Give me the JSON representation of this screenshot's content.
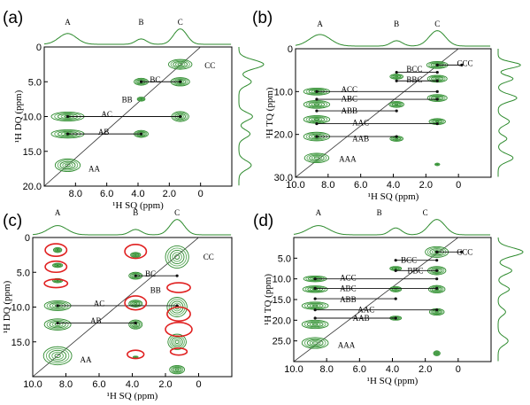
{
  "chart_data": [
    {
      "type": "contour",
      "panel_label": "(a)",
      "xlabel": "¹H SQ (ppm)",
      "ylabel": "¹H DQ (ppm)",
      "xlim": [
        10.0,
        -2.0
      ],
      "ylim": [
        0.0,
        20.0
      ],
      "xticks": [
        {
          "v": 8.0,
          "t": "8.0"
        },
        {
          "v": 6.0,
          "t": "6.0"
        },
        {
          "v": 4.0,
          "t": "4.0"
        },
        {
          "v": 2.0,
          "t": "2.0"
        },
        {
          "v": 0.0,
          "t": "0"
        }
      ],
      "yticks": [
        {
          "v": 0.0,
          "t": "0"
        },
        {
          "v": 5.0,
          "t": "5.0"
        },
        {
          "v": 10.0,
          "t": "10.0"
        },
        {
          "v": 15.0,
          "t": "15.0"
        },
        {
          "v": 20.0,
          "t": "20.0"
        }
      ],
      "projection_labels": [
        {
          "label": "A",
          "x": 8.5
        },
        {
          "label": "B",
          "x": 3.8
        },
        {
          "label": "C",
          "x": 1.3
        }
      ],
      "diagonal_slope": 2,
      "peaks": [
        {
          "x": 8.5,
          "y": 17.0,
          "w": 1.6,
          "h": 1.8
        },
        {
          "x": 8.5,
          "y": 10.0,
          "w": 2.1,
          "h": 1.3
        },
        {
          "x": 8.5,
          "y": 12.5,
          "w": 2.1,
          "h": 1.2
        },
        {
          "x": 3.8,
          "y": 12.5,
          "w": 0.9,
          "h": 1.0
        },
        {
          "x": 3.8,
          "y": 5.0,
          "w": 0.9,
          "h": 1.0
        },
        {
          "x": 3.8,
          "y": 7.5,
          "w": 0.5,
          "h": 0.6
        },
        {
          "x": 1.3,
          "y": 10.0,
          "w": 1.1,
          "h": 1.4
        },
        {
          "x": 1.3,
          "y": 5.0,
          "w": 1.2,
          "h": 1.2
        },
        {
          "x": 1.3,
          "y": 2.5,
          "w": 1.5,
          "h": 1.4
        }
      ],
      "connectors": [
        {
          "x1": 8.5,
          "x2": 1.3,
          "y": 10.0
        },
        {
          "x1": 8.5,
          "x2": 3.8,
          "y": 12.5
        },
        {
          "x1": 3.8,
          "x2": 1.3,
          "y": 5.0
        }
      ],
      "annotations": [
        {
          "text": "AA",
          "x": 6.8,
          "y": 17.5
        },
        {
          "text": "AB",
          "x": 6.2,
          "y": 12.2
        },
        {
          "text": "AC",
          "x": 6.0,
          "y": 9.7
        },
        {
          "text": "BB",
          "x": 4.7,
          "y": 7.6
        },
        {
          "text": "BC",
          "x": 2.9,
          "y": 4.7
        },
        {
          "text": "CC",
          "x": -0.6,
          "y": 2.7
        }
      ],
      "top_projection": [
        {
          "x": 8.5,
          "a": 0.7,
          "w": 0.8
        },
        {
          "x": 3.8,
          "a": 0.35,
          "w": 0.5
        },
        {
          "x": 1.3,
          "a": 1.0,
          "w": 0.6
        }
      ],
      "right_projection": [
        {
          "y": 2.5,
          "a": 1.0,
          "w": 0.9
        },
        {
          "y": 5.0,
          "a": 0.5,
          "w": 0.8
        },
        {
          "y": 10.0,
          "a": 0.55,
          "w": 0.8
        },
        {
          "y": 12.5,
          "a": 0.45,
          "w": 0.8
        },
        {
          "y": 17.0,
          "a": 0.5,
          "w": 0.9
        }
      ]
    },
    {
      "type": "contour",
      "panel_label": "(b)",
      "xlabel": "¹H SQ (ppm)",
      "ylabel": "¹H TQ (ppm)",
      "xlim": [
        10.0,
        -2.0
      ],
      "ylim": [
        0.0,
        30.0
      ],
      "xticks": [
        {
          "v": 10.0,
          "t": "10.0"
        },
        {
          "v": 8.0,
          "t": "8.0"
        },
        {
          "v": 6.0,
          "t": "6.0"
        },
        {
          "v": 4.0,
          "t": "4.0"
        },
        {
          "v": 2.0,
          "t": "2.0"
        },
        {
          "v": 0.0,
          "t": "0"
        }
      ],
      "yticks": [
        {
          "v": 0.0,
          "t": "0"
        },
        {
          "v": 10.0,
          "t": "10.0"
        },
        {
          "v": 20.0,
          "t": "20.0"
        },
        {
          "v": 30.0,
          "t": "30.0"
        }
      ],
      "projection_labels": [
        {
          "label": "A",
          "x": 8.5
        },
        {
          "label": "B",
          "x": 3.8
        },
        {
          "label": "C",
          "x": 1.3
        }
      ],
      "diagonal_slope": 3,
      "peaks": [
        {
          "x": 8.7,
          "y": 25.5,
          "w": 1.5,
          "h": 2.2
        },
        {
          "x": 8.7,
          "y": 20.5,
          "w": 1.6,
          "h": 2.0
        },
        {
          "x": 8.7,
          "y": 16.5,
          "w": 1.6,
          "h": 1.8
        },
        {
          "x": 8.7,
          "y": 13.0,
          "w": 1.6,
          "h": 1.8
        },
        {
          "x": 8.7,
          "y": 10.0,
          "w": 1.6,
          "h": 1.6
        },
        {
          "x": 3.8,
          "y": 21.0,
          "w": 0.8,
          "h": 1.2
        },
        {
          "x": 3.8,
          "y": 13.0,
          "w": 0.9,
          "h": 1.4
        },
        {
          "x": 3.8,
          "y": 6.5,
          "w": 0.8,
          "h": 1.2
        },
        {
          "x": 1.3,
          "y": 17.0,
          "w": 1.0,
          "h": 1.4
        },
        {
          "x": 1.3,
          "y": 11.5,
          "w": 1.2,
          "h": 1.6
        },
        {
          "x": 1.3,
          "y": 7.0,
          "w": 1.2,
          "h": 1.6
        },
        {
          "x": 1.3,
          "y": 3.8,
          "w": 1.3,
          "h": 1.6
        },
        {
          "x": 1.3,
          "y": 27.0,
          "w": 0.3,
          "h": 0.6
        }
      ],
      "connectors": [
        {
          "x1": 8.7,
          "x2": 1.3,
          "y": 10.0
        },
        {
          "x1": 8.7,
          "x2": 1.3,
          "y": 11.8
        },
        {
          "x1": 8.7,
          "x2": 3.8,
          "y": 14.5
        },
        {
          "x1": 8.7,
          "x2": 1.3,
          "y": 17.5
        },
        {
          "x1": 8.7,
          "x2": 3.8,
          "y": 20.5
        },
        {
          "x1": 3.8,
          "x2": 1.3,
          "y": 5.5
        },
        {
          "x1": 3.8,
          "x2": 1.3,
          "y": 7.5
        },
        {
          "x1": 1.3,
          "x2": -0.2,
          "y": 3.8
        }
      ],
      "annotations": [
        {
          "text": "AAA",
          "x": 6.8,
          "y": 25.8
        },
        {
          "text": "AAB",
          "x": 6.0,
          "y": 21.0
        },
        {
          "text": "AAC",
          "x": 6.0,
          "y": 17.3
        },
        {
          "text": "ABB",
          "x": 6.7,
          "y": 14.5
        },
        {
          "text": "ABC",
          "x": 6.7,
          "y": 11.7
        },
        {
          "text": "ACC",
          "x": 6.7,
          "y": 9.5
        },
        {
          "text": "BBC",
          "x": 2.7,
          "y": 7.2
        },
        {
          "text": "BCC",
          "x": 2.7,
          "y": 4.8
        },
        {
          "text": "CCC",
          "x": -0.4,
          "y": 3.4
        }
      ],
      "top_projection": [
        {
          "x": 8.5,
          "a": 0.75,
          "w": 0.9
        },
        {
          "x": 3.8,
          "a": 0.35,
          "w": 0.5
        },
        {
          "x": 1.3,
          "a": 1.0,
          "w": 0.7
        }
      ],
      "right_projection": [
        {
          "y": 3.8,
          "a": 0.9,
          "w": 1.0
        },
        {
          "y": 7.0,
          "a": 0.6,
          "w": 1.0
        },
        {
          "y": 11.5,
          "a": 0.75,
          "w": 1.2
        },
        {
          "y": 17.0,
          "a": 0.45,
          "w": 1.2
        },
        {
          "y": 21.0,
          "a": 0.35,
          "w": 1.0
        },
        {
          "y": 25.5,
          "a": 0.6,
          "w": 1.3
        }
      ]
    },
    {
      "type": "contour",
      "panel_label": "(c)",
      "xlabel": "¹H SQ (ppm)",
      "ylabel": "¹H DQ (ppm)",
      "xlim": [
        10.0,
        -2.0
      ],
      "ylim": [
        0.0,
        20.0
      ],
      "xticks": [
        {
          "v": 10.0,
          "t": "10.0"
        },
        {
          "v": 8.0,
          "t": "8.0"
        },
        {
          "v": 6.0,
          "t": "6.0"
        },
        {
          "v": 4.0,
          "t": "4.0"
        },
        {
          "v": 2.0,
          "t": "2.0"
        },
        {
          "v": 0.0,
          "t": "0"
        }
      ],
      "yticks": [
        {
          "v": 0.0,
          "t": "0"
        },
        {
          "v": 5.0,
          "t": "5.0"
        },
        {
          "v": 10.0,
          "t": "10.0"
        },
        {
          "v": 15.0,
          "t": "15.0"
        }
      ],
      "projection_labels": [
        {
          "label": "A",
          "x": 8.5
        },
        {
          "label": "B",
          "x": 3.8
        },
        {
          "label": "C",
          "x": 1.3
        }
      ],
      "diagonal_slope": 2,
      "peaks": [
        {
          "x": 8.5,
          "y": 17.0,
          "w": 1.7,
          "h": 2.6
        },
        {
          "x": 8.5,
          "y": 12.5,
          "w": 1.6,
          "h": 1.6
        },
        {
          "x": 8.5,
          "y": 9.8,
          "w": 1.6,
          "h": 1.4
        },
        {
          "x": 8.5,
          "y": 6.2,
          "w": 0.6,
          "h": 0.6
        },
        {
          "x": 8.5,
          "y": 4.0,
          "w": 0.6,
          "h": 0.6
        },
        {
          "x": 8.5,
          "y": 1.8,
          "w": 0.5,
          "h": 0.7
        },
        {
          "x": 3.8,
          "y": 12.5,
          "w": 0.8,
          "h": 1.3
        },
        {
          "x": 3.8,
          "y": 9.5,
          "w": 0.8,
          "h": 1.0
        },
        {
          "x": 3.8,
          "y": 5.5,
          "w": 0.8,
          "h": 1.0
        },
        {
          "x": 3.8,
          "y": 2.5,
          "w": 0.6,
          "h": 0.7
        },
        {
          "x": 3.8,
          "y": 17.2,
          "w": 0.3,
          "h": 0.3
        },
        {
          "x": 1.3,
          "y": 2.8,
          "w": 1.4,
          "h": 3.2
        },
        {
          "x": 1.3,
          "y": 10.0,
          "w": 1.2,
          "h": 2.8
        },
        {
          "x": 1.3,
          "y": 15.0,
          "w": 1.1,
          "h": 2.2
        },
        {
          "x": 1.3,
          "y": 19.0,
          "w": 0.9,
          "h": 1.2
        }
      ],
      "circles": [
        {
          "x": 8.6,
          "y": 1.8,
          "rx": 0.65,
          "ry": 0.9
        },
        {
          "x": 8.6,
          "y": 4.2,
          "rx": 0.65,
          "ry": 0.8
        },
        {
          "x": 8.6,
          "y": 6.6,
          "rx": 0.7,
          "ry": 0.6
        },
        {
          "x": 3.8,
          "y": 2.0,
          "rx": 0.65,
          "ry": 1.0
        },
        {
          "x": 3.8,
          "y": 9.4,
          "rx": 0.65,
          "ry": 1.0
        },
        {
          "x": 3.8,
          "y": 16.8,
          "rx": 0.5,
          "ry": 0.6
        },
        {
          "x": 1.2,
          "y": 7.2,
          "rx": 0.7,
          "ry": 0.7
        },
        {
          "x": 1.2,
          "y": 11.0,
          "rx": 0.7,
          "ry": 1.0
        },
        {
          "x": 1.2,
          "y": 13.2,
          "rx": 0.8,
          "ry": 1.0
        },
        {
          "x": 1.2,
          "y": 16.4,
          "rx": 0.5,
          "ry": 0.5
        }
      ],
      "connectors": [
        {
          "x1": 8.5,
          "x2": 1.3,
          "y": 9.8
        },
        {
          "x1": 8.5,
          "x2": 3.8,
          "y": 12.3
        },
        {
          "x1": 3.8,
          "x2": 1.3,
          "y": 5.5
        }
      ],
      "annotations": [
        {
          "text": "AA",
          "x": 6.8,
          "y": 17.6
        },
        {
          "text": "AB",
          "x": 6.2,
          "y": 12.0
        },
        {
          "text": "AC",
          "x": 6.0,
          "y": 9.5
        },
        {
          "text": "BB",
          "x": 2.6,
          "y": 7.6
        },
        {
          "text": "BC",
          "x": 2.9,
          "y": 5.2
        },
        {
          "text": "CC",
          "x": -0.6,
          "y": 2.8
        }
      ],
      "top_projection": [
        {
          "x": 8.5,
          "a": 0.6,
          "w": 0.8
        },
        {
          "x": 3.8,
          "a": 0.35,
          "w": 0.5
        },
        {
          "x": 1.3,
          "a": 1.0,
          "w": 0.6
        }
      ],
      "right_projection": []
    },
    {
      "type": "contour",
      "panel_label": "(d)",
      "xlabel": "¹H SQ (ppm)",
      "ylabel": "¹H TQ (ppm)",
      "xlim": [
        10.0,
        -2.0
      ],
      "ylim": [
        0.0,
        30.0
      ],
      "xticks": [
        {
          "v": 10.0,
          "t": "10.0"
        },
        {
          "v": 8.0,
          "t": "8.0"
        },
        {
          "v": 6.0,
          "t": "6.0"
        },
        {
          "v": 4.0,
          "t": "4.0"
        },
        {
          "v": 2.0,
          "t": "2.0"
        },
        {
          "v": 0.0,
          "t": "0"
        }
      ],
      "yticks": [
        {
          "v": 5.0,
          "t": "5.0"
        },
        {
          "v": 10.0,
          "t": "10.0"
        },
        {
          "v": 15.0,
          "t": "15.0"
        },
        {
          "v": 20.0,
          "t": "20.0"
        },
        {
          "v": 25.0,
          "t": "25.0"
        }
      ],
      "projection_labels": [
        {
          "label": "A",
          "x": 8.5
        },
        {
          "label": "B",
          "x": 4.8
        },
        {
          "label": "C",
          "x": 2.0
        }
      ],
      "diagonal_slope": 3,
      "peaks": [
        {
          "x": 8.7,
          "y": 25.5,
          "w": 1.6,
          "h": 2.6
        },
        {
          "x": 8.7,
          "y": 21.0,
          "w": 1.6,
          "h": 2.0
        },
        {
          "x": 8.7,
          "y": 16.5,
          "w": 1.6,
          "h": 1.8
        },
        {
          "x": 8.7,
          "y": 12.5,
          "w": 1.5,
          "h": 1.6
        },
        {
          "x": 8.7,
          "y": 10.0,
          "w": 1.4,
          "h": 1.4
        },
        {
          "x": 3.8,
          "y": 19.5,
          "w": 0.7,
          "h": 1.0
        },
        {
          "x": 3.8,
          "y": 12.5,
          "w": 0.7,
          "h": 1.3
        },
        {
          "x": 3.8,
          "y": 7.5,
          "w": 0.7,
          "h": 1.0
        },
        {
          "x": 1.3,
          "y": 18.0,
          "w": 0.9,
          "h": 1.6
        },
        {
          "x": 1.3,
          "y": 12.5,
          "w": 1.0,
          "h": 1.8
        },
        {
          "x": 1.3,
          "y": 8.0,
          "w": 1.1,
          "h": 2.0
        },
        {
          "x": 1.3,
          "y": 3.5,
          "w": 1.4,
          "h": 2.6
        },
        {
          "x": 1.3,
          "y": 28.0,
          "w": 0.4,
          "h": 1.2
        }
      ],
      "connectors": [
        {
          "x1": 8.7,
          "x2": 1.3,
          "y": 10.0
        },
        {
          "x1": 8.7,
          "x2": 1.3,
          "y": 12.3
        },
        {
          "x1": 8.7,
          "x2": 3.8,
          "y": 14.8
        },
        {
          "x1": 8.7,
          "x2": 1.3,
          "y": 17.5
        },
        {
          "x1": 8.7,
          "x2": 3.8,
          "y": 19.5
        },
        {
          "x1": 3.8,
          "x2": 1.3,
          "y": 5.5
        },
        {
          "x1": 3.8,
          "x2": 1.3,
          "y": 8.0
        },
        {
          "x1": 1.3,
          "x2": -0.2,
          "y": 3.5
        }
      ],
      "annotations": [
        {
          "text": "AAA",
          "x": 6.8,
          "y": 26.0
        },
        {
          "text": "AAB",
          "x": 5.9,
          "y": 19.5
        },
        {
          "text": "AAC",
          "x": 5.6,
          "y": 17.5
        },
        {
          "text": "ABB",
          "x": 6.7,
          "y": 15.0
        },
        {
          "text": "ABC",
          "x": 6.7,
          "y": 12.3
        },
        {
          "text": "ACC",
          "x": 6.7,
          "y": 9.7
        },
        {
          "text": "BBC",
          "x": 2.6,
          "y": 8.0
        },
        {
          "text": "BCC",
          "x": 3.0,
          "y": 5.5
        },
        {
          "text": "CCC",
          "x": -0.4,
          "y": 3.5
        }
      ],
      "top_projection": [
        {
          "x": 8.5,
          "a": 0.6,
          "w": 0.9
        },
        {
          "x": 3.8,
          "a": 0.45,
          "w": 0.5
        },
        {
          "x": 1.3,
          "a": 1.0,
          "w": 0.7
        }
      ],
      "right_projection": [
        {
          "y": 3.5,
          "a": 1.0,
          "w": 1.4
        },
        {
          "y": 8.0,
          "a": 0.55,
          "w": 1.2
        },
        {
          "y": 12.5,
          "a": 0.45,
          "w": 1.2
        },
        {
          "y": 18.0,
          "a": 0.3,
          "w": 1.2
        },
        {
          "y": 25.0,
          "a": 0.4,
          "w": 1.4
        }
      ]
    }
  ]
}
